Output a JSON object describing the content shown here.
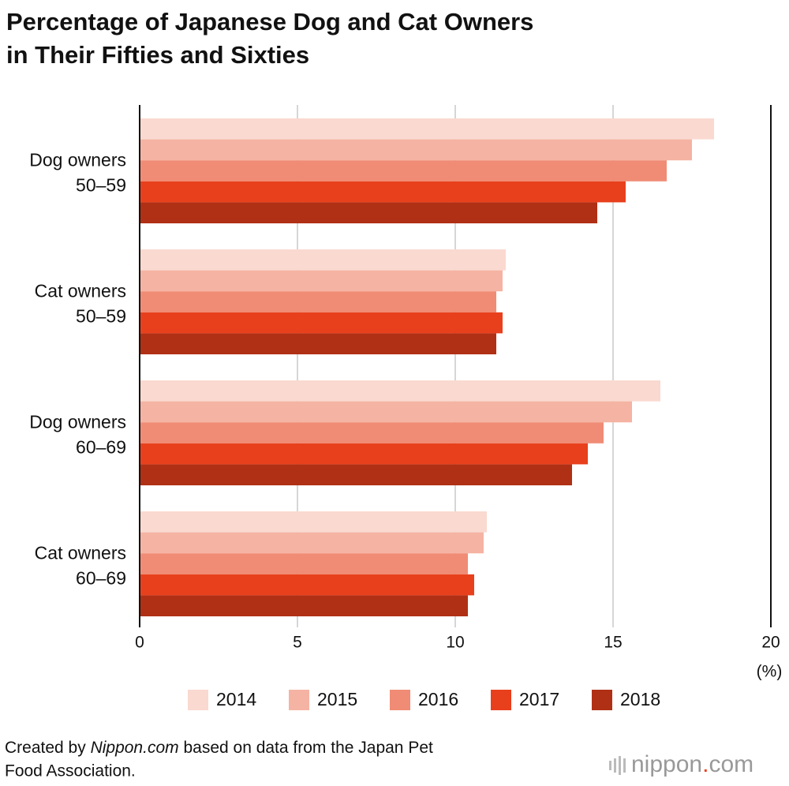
{
  "chart_data": {
    "type": "hbar",
    "title": [
      "Percentage of Japanese Dog and Cat Owners",
      "in Their Fifties and Sixties"
    ],
    "categories": [
      [
        "Dog owners",
        "50–59"
      ],
      [
        "Cat owners",
        "50–59"
      ],
      [
        "Dog owners",
        "60–69"
      ],
      [
        "Cat owners",
        "60–69"
      ]
    ],
    "series": [
      {
        "name": "2014",
        "color": "#fad9d0",
        "values": [
          18.2,
          11.6,
          16.5,
          11.0
        ]
      },
      {
        "name": "2015",
        "color": "#f5b3a3",
        "values": [
          17.5,
          11.5,
          15.6,
          10.9
        ]
      },
      {
        "name": "2016",
        "color": "#f08c75",
        "values": [
          16.7,
          11.3,
          14.7,
          10.4
        ]
      },
      {
        "name": "2017",
        "color": "#e8401c",
        "values": [
          15.4,
          11.5,
          14.2,
          10.6
        ]
      },
      {
        "name": "2018",
        "color": "#b03015",
        "values": [
          14.5,
          11.3,
          13.7,
          10.4
        ]
      }
    ],
    "xlim": [
      0,
      20
    ],
    "xticks": [
      0,
      5,
      10,
      15,
      20
    ],
    "x_unit": "(%)",
    "grid": true,
    "source": {
      "prefix": "Created by ",
      "emphasis": "Nippon.com",
      "rest": " based on data from the Japan Pet",
      "line2": "Food Association."
    },
    "logo": {
      "name": "nippon",
      "dot": ".",
      "suffix": "com"
    }
  }
}
